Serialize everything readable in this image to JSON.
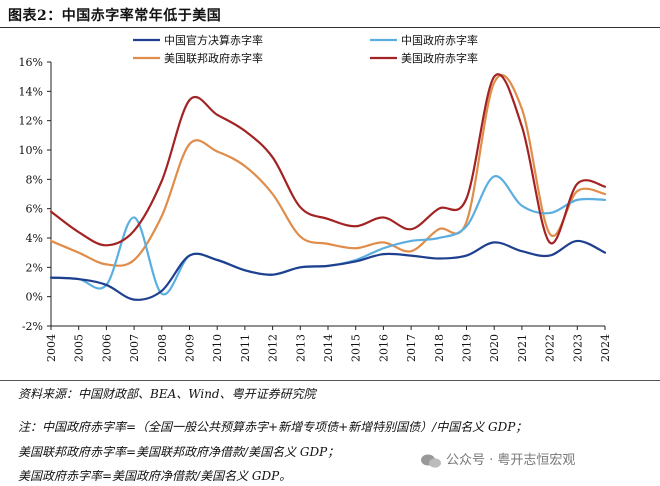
{
  "figure_title": "图表2：中国赤字率常年低于美国",
  "source": "资料来源：中国财政部、BEA、Wind、粤开证券研究院",
  "notes": [
    "注：中国政府赤字率=（全国一般公共预算赤字+新增专项债+新增特别国债）/中国名义 GDP；",
    "美国联邦政府赤字率=美国联邦政府净借款/美国名义 GDP；",
    "美国政府赤字率=美国政府净借款/美国名义 GDP。"
  ],
  "watermark": "公众号 · 粤开志恒宏观",
  "colors": {
    "cn_official": "#1f3f8f",
    "cn_gov": "#5aaee0",
    "us_federal": "#e08c4a",
    "us_gov": "#a32323"
  },
  "chart_data": {
    "type": "line",
    "title": "",
    "xlabel": "",
    "ylabel": "",
    "x": [
      2004,
      2005,
      2006,
      2007,
      2008,
      2009,
      2010,
      2011,
      2012,
      2013,
      2014,
      2015,
      2016,
      2017,
      2018,
      2019,
      2020,
      2021,
      2022,
      2023,
      2024
    ],
    "ylim": [
      -2,
      16
    ],
    "yticks": [
      -2,
      0,
      2,
      4,
      6,
      8,
      10,
      12,
      14,
      16
    ],
    "ytick_labels": [
      "-2%",
      "0%",
      "2%",
      "4%",
      "6%",
      "8%",
      "10%",
      "12%",
      "14%",
      "16%"
    ],
    "xtick_labels": [
      "2004",
      "2005",
      "2006",
      "2007",
      "2008",
      "2009",
      "2010",
      "2011",
      "2012",
      "2013",
      "2014",
      "2015",
      "2016",
      "2017",
      "2018",
      "2019",
      "2020",
      "2021",
      "2022",
      "2023",
      "2024"
    ],
    "grid": false,
    "legend_position": "top",
    "series": [
      {
        "name": "中国官方决算赤字率",
        "color_key": "cn_official",
        "values": [
          1.3,
          1.2,
          0.8,
          -0.2,
          0.4,
          2.8,
          2.5,
          1.8,
          1.5,
          2.0,
          2.1,
          2.4,
          2.9,
          2.8,
          2.6,
          2.8,
          3.7,
          3.1,
          2.8,
          3.8,
          3.0
        ]
      },
      {
        "name": "中国政府赤字率",
        "color_key": "cn_gov",
        "values": [
          1.3,
          1.2,
          0.8,
          5.4,
          0.2,
          2.8,
          2.5,
          1.8,
          1.5,
          2.0,
          2.1,
          2.5,
          3.3,
          3.8,
          4.0,
          4.8,
          8.2,
          6.2,
          5.7,
          6.6,
          6.6
        ]
      },
      {
        "name": "美国联邦政府赤字率",
        "color_key": "us_federal",
        "values": [
          3.8,
          3.0,
          2.2,
          2.5,
          5.5,
          10.4,
          9.9,
          8.9,
          7.0,
          4.1,
          3.6,
          3.3,
          3.7,
          3.1,
          4.6,
          5.1,
          14.6,
          12.8,
          4.3,
          7.2,
          7.0
        ]
      },
      {
        "name": "美国政府赤字率",
        "color_key": "us_gov",
        "values": [
          5.8,
          4.4,
          3.5,
          4.5,
          7.9,
          13.4,
          12.4,
          11.3,
          9.5,
          6.1,
          5.3,
          4.8,
          5.4,
          4.6,
          6.0,
          6.7,
          15.0,
          11.6,
          3.7,
          7.7,
          7.5
        ]
      }
    ]
  }
}
